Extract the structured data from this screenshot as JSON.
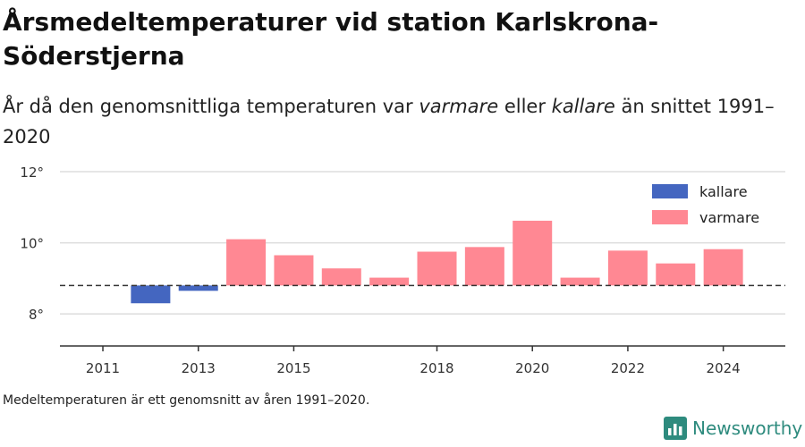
{
  "title": "Årsmedeltemperaturer vid station Karlskrona-Söderstjerna",
  "subtitle": {
    "part1": "År då den genomsnittliga temperaturen var ",
    "em1": "varmare",
    "part2": " eller ",
    "em2": "kallare",
    "part3": " än snittet 1991–2020"
  },
  "footnote": "Medeltemperaturen är ett genomsnitt av åren 1991–2020.",
  "brand": {
    "name": "Newsworthy",
    "icon": "bar-chart-logo-icon"
  },
  "colors": {
    "kallare": "#4466c0",
    "varmare": "#ff8893",
    "grid": "#dddddd",
    "axis": "#333333",
    "reference": "#333333"
  },
  "chart_data": {
    "type": "bar",
    "baseline": 8.8,
    "x": [
      2012,
      2013,
      2014,
      2015,
      2016,
      2017,
      2018,
      2019,
      2020,
      2021,
      2022,
      2023,
      2024
    ],
    "values": [
      8.3,
      8.65,
      10.1,
      9.65,
      9.28,
      9.02,
      9.75,
      9.88,
      10.62,
      9.02,
      9.78,
      9.42,
      9.82
    ],
    "categories": [
      "kallare",
      "kallare",
      "varmare",
      "varmare",
      "varmare",
      "varmare",
      "varmare",
      "varmare",
      "varmare",
      "varmare",
      "varmare",
      "varmare",
      "varmare"
    ],
    "xlim": [
      2010.1,
      2025.3
    ],
    "ylim": [
      7.1,
      12.2
    ],
    "yticks": [
      8,
      10,
      12
    ],
    "ytick_labels": [
      "8°",
      "10°",
      "12°"
    ],
    "xticks": [
      2011,
      2013,
      2015,
      2018,
      2020,
      2022,
      2024
    ],
    "xtick_labels": [
      "2011",
      "2013",
      "2015",
      "2018",
      "2020",
      "2022",
      "2024"
    ],
    "legend": {
      "position": "top-right",
      "items": [
        {
          "key": "kallare",
          "label": "kallare"
        },
        {
          "key": "varmare",
          "label": "varmare"
        }
      ]
    },
    "grid": true
  }
}
